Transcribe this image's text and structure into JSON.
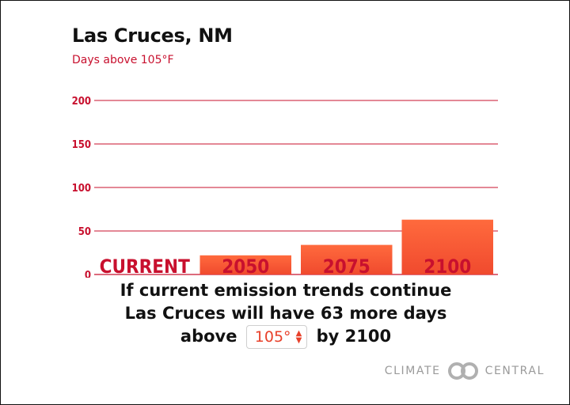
{
  "header": {
    "title": "Las Cruces, NM",
    "subtitle": "Days above 105°F"
  },
  "chart_data": {
    "type": "bar",
    "title": "Las Cruces, NM",
    "subtitle": "Days above 105°F",
    "categories": [
      "CURRENT",
      "2050",
      "2075",
      "2100"
    ],
    "values": [
      0,
      22,
      34,
      63
    ],
    "ylim": [
      0,
      200
    ],
    "yticks": [
      0,
      50,
      100,
      150,
      200
    ],
    "grid": true,
    "colors": {
      "bar_top": "#ff6a3d",
      "bar_bottom": "#f04a2e",
      "axis": "#c8102e",
      "grid": "#c8102e"
    }
  },
  "summary": {
    "line1": "If current emission trends continue",
    "line2_prefix": "Las Cruces will have",
    "line2_count": "63",
    "line2_suffix": "more days",
    "line3_prefix": "above",
    "line3_suffix": "by 2100",
    "threshold_value": "105°",
    "stepper_up_icon": "▲",
    "stepper_down_icon": "▼"
  },
  "brand": {
    "left": "CLIMATE",
    "right": "CENTRAL",
    "logo_icon": "climate-central-rings-icon"
  }
}
